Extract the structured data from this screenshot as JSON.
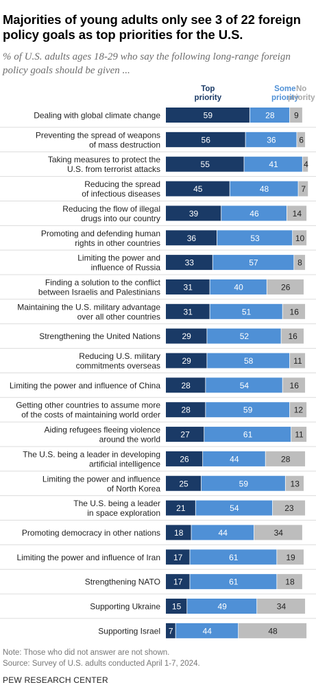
{
  "title": "Majorities of young adults only see 3 of 22 foreign policy goals as top priorities for the U.S.",
  "subtitle": "% of U.S. adults ages 18-29 who say the following long-range foreign policy goals should be given ...",
  "note": "Note: Those who did not answer are not shown.",
  "source": "Source: Survey of U.S. adults conducted April 1-7, 2024.",
  "brand": "PEW RESEARCH CENTER",
  "colors": {
    "top": "#1a3a66",
    "some": "#4f90d6",
    "no": "#bdbdbd",
    "text_top": "#1a3a66",
    "text_some": "#4f90d6",
    "text_no": "#a8a8a8"
  },
  "chart_data": {
    "type": "bar",
    "stacked": true,
    "orientation": "horizontal",
    "legend_position": "top",
    "series": [
      {
        "name": "Top priority",
        "values": [
          59,
          56,
          55,
          45,
          39,
          36,
          33,
          31,
          31,
          29,
          29,
          28,
          28,
          27,
          26,
          25,
          21,
          18,
          17,
          17,
          15,
          7
        ]
      },
      {
        "name": "Some priority",
        "values": [
          28,
          36,
          41,
          48,
          46,
          53,
          57,
          40,
          51,
          52,
          58,
          54,
          59,
          61,
          44,
          59,
          54,
          44,
          61,
          61,
          49,
          44
        ]
      },
      {
        "name": "No priority",
        "values": [
          9,
          6,
          4,
          7,
          14,
          10,
          8,
          26,
          16,
          16,
          11,
          16,
          12,
          11,
          28,
          13,
          23,
          34,
          19,
          18,
          34,
          48
        ]
      }
    ],
    "categories": [
      [
        "Dealing with global climate change"
      ],
      [
        "Preventing the spread of weapons",
        "of mass destruction"
      ],
      [
        "Taking measures to protect the",
        "U.S. from terrorist attacks"
      ],
      [
        "Reducing the spread",
        "of infectious diseases"
      ],
      [
        "Reducing the flow of illegal",
        "drugs into our country"
      ],
      [
        "Promoting and defending human",
        "rights in other countries"
      ],
      [
        "Limiting the power and",
        "influence of Russia"
      ],
      [
        "Finding a solution to the conflict",
        "between Israelis and Palestinians"
      ],
      [
        "Maintaining the U.S. military advantage",
        "over all other countries"
      ],
      [
        "Strengthening the United Nations"
      ],
      [
        "Reducing U.S. military",
        "commitments overseas"
      ],
      [
        "Limiting the power and influence of China"
      ],
      [
        "Getting other countries to assume more",
        "of the costs of maintaining world order"
      ],
      [
        "Aiding refugees fleeing violence",
        "around the world"
      ],
      [
        "The U.S. being a leader in developing",
        "artificial intelligence"
      ],
      [
        "Limiting the power and influence",
        "of North Korea"
      ],
      [
        "The U.S. being a leader",
        "in space exploration"
      ],
      [
        "Promoting democracy in other nations"
      ],
      [
        "Limiting the power and influence of Iran"
      ],
      [
        "Strengthening NATO"
      ],
      [
        "Supporting Ukraine"
      ],
      [
        "Supporting Israel"
      ]
    ],
    "legend_lines": [
      [
        "Top",
        "priority"
      ],
      [
        "Some",
        "priority"
      ],
      [
        "No",
        "priority"
      ]
    ],
    "xlim": [
      0,
      100
    ]
  }
}
